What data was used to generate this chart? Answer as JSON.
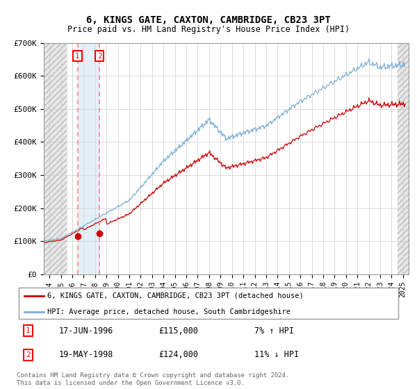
{
  "title": "6, KINGS GATE, CAXTON, CAMBRIDGE, CB23 3PT",
  "subtitle": "Price paid vs. HM Land Registry's House Price Index (HPI)",
  "ylim": [
    0,
    700000
  ],
  "yticks": [
    0,
    100000,
    200000,
    300000,
    400000,
    500000,
    600000,
    700000
  ],
  "ytick_labels": [
    "£0",
    "£100K",
    "£200K",
    "£300K",
    "£400K",
    "£500K",
    "£600K",
    "£700K"
  ],
  "sale1_date": 1996.46,
  "sale1_price": 115000,
  "sale2_date": 1998.38,
  "sale2_price": 124000,
  "red_line_color": "#cc0000",
  "blue_line_color": "#7aaed6",
  "marker_color": "#cc0000",
  "dashed_line_color": "#ff8888",
  "grid_color": "#cccccc",
  "legend_entries": [
    "6, KINGS GATE, CAXTON, CAMBRIDGE, CB23 3PT (detached house)",
    "HPI: Average price, detached house, South Cambridgeshire"
  ],
  "table_rows": [
    {
      "num": "1",
      "date": "17-JUN-1996",
      "price": "£115,000",
      "hpi": "7% ↑ HPI"
    },
    {
      "num": "2",
      "date": "19-MAY-1998",
      "price": "£124,000",
      "hpi": "11% ↓ HPI"
    }
  ],
  "footer": "Contains HM Land Registry data © Crown copyright and database right 2024.\nThis data is licensed under the Open Government Licence v3.0.",
  "xlim_start": 1993.5,
  "xlim_end": 2025.5,
  "hatch_left_end": 1995.5,
  "hatch_right_start": 2024.5,
  "blue_shade_start": 1996.46,
  "blue_shade_end": 1998.38
}
